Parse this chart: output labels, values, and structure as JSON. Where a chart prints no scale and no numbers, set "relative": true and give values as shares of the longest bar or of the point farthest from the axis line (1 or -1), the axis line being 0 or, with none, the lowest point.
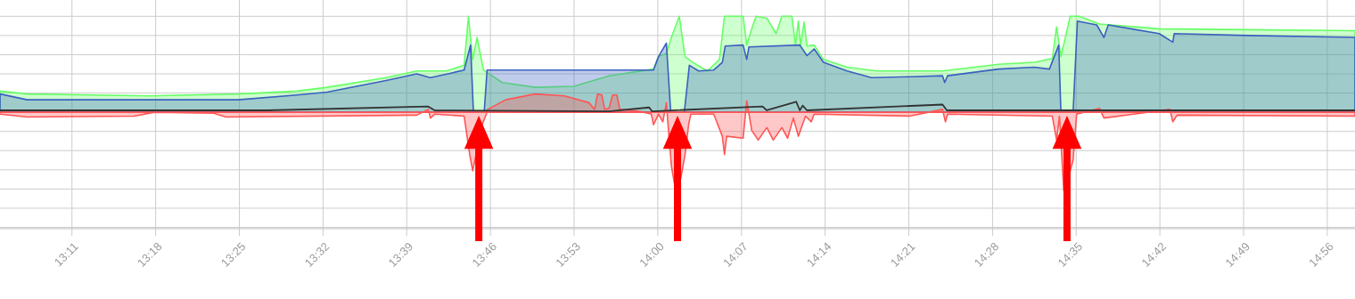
{
  "chart_data": {
    "type": "area",
    "relative": true,
    "grid": true,
    "xlim": [
      13.083,
      14.972
    ],
    "xticks": [
      {
        "value": 13.1833,
        "label": "13:11"
      },
      {
        "value": 13.3,
        "label": "13:18"
      },
      {
        "value": 13.4167,
        "label": "13:25"
      },
      {
        "value": 13.5333,
        "label": "13:32"
      },
      {
        "value": 13.65,
        "label": "13:39"
      },
      {
        "value": 13.7667,
        "label": "13:46"
      },
      {
        "value": 13.8833,
        "label": "13:53"
      },
      {
        "value": 14.0,
        "label": "14:00"
      },
      {
        "value": 14.1167,
        "label": "14:07"
      },
      {
        "value": 14.2333,
        "label": "14:14"
      },
      {
        "value": 14.35,
        "label": "14:21"
      },
      {
        "value": 14.4667,
        "label": "14:28"
      },
      {
        "value": 14.5833,
        "label": "14:35"
      },
      {
        "value": 14.7,
        "label": "14:42"
      },
      {
        "value": 14.8167,
        "label": "14:49"
      },
      {
        "value": 14.9333,
        "label": "14:56"
      }
    ],
    "series": [
      {
        "color": "#66ff66",
        "x": [
          13.083,
          13.121,
          13.291,
          13.415,
          13.497,
          13.539,
          13.621,
          13.664,
          13.705,
          13.73,
          13.736,
          13.742,
          13.748,
          13.757,
          13.783,
          13.829,
          13.883,
          13.932,
          13.994,
          14.001,
          14.012,
          14.019,
          14.03,
          14.038,
          14.049,
          14.069,
          14.086,
          14.093,
          14.119,
          14.124,
          14.131,
          14.137,
          14.152,
          14.165,
          14.173,
          14.187,
          14.192,
          14.196,
          14.199,
          14.204,
          14.208,
          14.218,
          14.231,
          14.264,
          14.305,
          14.397,
          14.475,
          14.525,
          14.55,
          14.556,
          14.562,
          14.575,
          14.587,
          14.616,
          14.699,
          14.823,
          14.972
        ],
        "values": [
          0.22,
          0.19,
          0.17,
          0.19,
          0.22,
          0.26,
          0.36,
          0.43,
          0.43,
          0.49,
          1.0,
          0.55,
          0.78,
          0.44,
          0.31,
          0.26,
          0.27,
          0.38,
          0.45,
          0.58,
          0.61,
          0.78,
          1.0,
          0.58,
          0.52,
          0.43,
          0.55,
          1.0,
          1.0,
          0.7,
          0.87,
          1.0,
          0.98,
          0.82,
          1.0,
          1.0,
          0.7,
          0.95,
          0.7,
          0.94,
          0.69,
          0.7,
          0.55,
          0.47,
          0.43,
          0.43,
          0.5,
          0.52,
          0.56,
          0.89,
          0.58,
          1.0,
          1.0,
          0.92,
          0.87,
          0.86,
          0.85
        ]
      },
      {
        "color": "#3a5fc0",
        "x": [
          13.083,
          13.121,
          13.415,
          13.497,
          13.539,
          13.621,
          13.664,
          13.683,
          13.713,
          13.73,
          13.739,
          13.743,
          13.758,
          13.762,
          13.994,
          14.001,
          14.012,
          14.018,
          14.037,
          14.044,
          14.057,
          14.078,
          14.09,
          14.094,
          14.119,
          14.124,
          14.127,
          14.198,
          14.208,
          14.218,
          14.231,
          14.264,
          14.298,
          14.351,
          14.397,
          14.4,
          14.404,
          14.475,
          14.525,
          14.546,
          14.559,
          14.562,
          14.579,
          14.585,
          14.612,
          14.622,
          14.628,
          14.699,
          14.718,
          14.72,
          14.823,
          14.972
        ],
        "values": [
          0.19,
          0.13,
          0.13,
          0.18,
          0.21,
          0.33,
          0.4,
          0.36,
          0.41,
          0.44,
          0.7,
          0,
          0,
          0.44,
          0.44,
          0.58,
          0.72,
          0,
          0,
          0.49,
          0.43,
          0.44,
          0.52,
          0.69,
          0.7,
          0.55,
          0.68,
          0.7,
          0.59,
          0.66,
          0.52,
          0.43,
          0.36,
          0.37,
          0.38,
          0.31,
          0.38,
          0.45,
          0.47,
          0.45,
          0.7,
          0,
          0,
          0.95,
          0.91,
          0.78,
          0.91,
          0.82,
          0.73,
          0.82,
          0.8,
          0.78
        ]
      },
      {
        "color": "#ff5555",
        "x": [
          13.083,
          13.121,
          13.27,
          13.298,
          13.381,
          13.398,
          13.664,
          13.68,
          13.683,
          13.689,
          13.73,
          13.738,
          13.742,
          13.746,
          13.755,
          13.761,
          13.763,
          13.788,
          13.829,
          13.87,
          13.904,
          13.912,
          13.916,
          13.922,
          13.926,
          13.932,
          13.937,
          13.943,
          13.947,
          13.974,
          13.991,
          13.994,
          14.001,
          14.007,
          14.012,
          14.014,
          14.019,
          14.024,
          14.032,
          14.038,
          14.043,
          14.046,
          14.078,
          14.09,
          14.093,
          14.096,
          14.119,
          14.124,
          14.131,
          14.14,
          14.152,
          14.161,
          14.173,
          14.181,
          14.189,
          14.196,
          14.206,
          14.214,
          14.218,
          14.351,
          14.397,
          14.401,
          14.404,
          14.55,
          14.556,
          14.56,
          14.566,
          14.572,
          14.579,
          14.584,
          14.616,
          14.622,
          14.714,
          14.718,
          14.724,
          14.972
        ],
        "values": [
          -0.02,
          -0.05,
          -0.04,
          0,
          -0.01,
          -0.05,
          -0.03,
          0.03,
          -0.06,
          -0.02,
          -0.04,
          -0.45,
          -0.61,
          null,
          -0.13,
          -0.02,
          0.03,
          0.13,
          0.19,
          0.17,
          0.1,
          0.03,
          0.19,
          0.18,
          0.03,
          0.04,
          0.18,
          0.18,
          0.03,
          0.01,
          -0.02,
          -0.13,
          -0.02,
          -0.1,
          0.1,
          -0.1,
          -0.56,
          -0.78,
          -0.69,
          -0.44,
          -0.13,
          -0.02,
          -0.02,
          -0.25,
          -0.44,
          -0.25,
          -0.27,
          0.12,
          -0.19,
          -0.29,
          -0.16,
          -0.29,
          -0.16,
          -0.27,
          -0.06,
          -0.25,
          -0.04,
          -0.1,
          -0.02,
          -0.04,
          0.03,
          -0.1,
          -0.02,
          -0.04,
          -0.29,
          -0.04,
          -0.82,
          -0.69,
          -0.5,
          -0.02,
          0.04,
          -0.06,
          0.03,
          -0.1,
          -0.03,
          -0.04
        ]
      },
      {
        "type": "line",
        "color": "#333333",
        "x": [
          13.083,
          13.456,
          13.68,
          13.689,
          13.932,
          13.988,
          13.992,
          14.146,
          14.152,
          14.193,
          14.198,
          14.202,
          14.208,
          14.397,
          14.403,
          14.972
        ],
        "values": [
          0.02,
          0.02,
          0.06,
          0.02,
          0.01,
          0.05,
          0.01,
          0.06,
          0.02,
          0.11,
          0.02,
          0.07,
          0.02,
          0.08,
          0.02,
          0.02
        ]
      }
    ]
  }
}
